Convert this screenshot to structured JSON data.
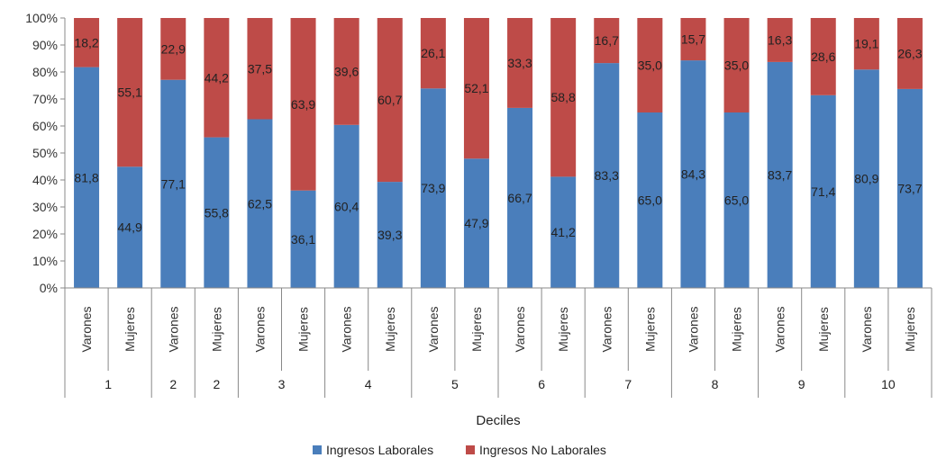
{
  "chart_data": {
    "type": "bar",
    "stacked": true,
    "title": "",
    "xlabel": "Deciles",
    "ylabel": "",
    "ylim": [
      0,
      100
    ],
    "yticks": [
      "0%",
      "10%",
      "20%",
      "30%",
      "40%",
      "50%",
      "60%",
      "70%",
      "80%",
      "90%",
      "100%"
    ],
    "categories": [
      "Varones",
      "Mujeres",
      "Varones",
      "Mujeres",
      "Varones",
      "Mujeres",
      "Varones",
      "Mujeres",
      "Varones",
      "Mujeres",
      "Varones",
      "Mujeres",
      "Varones",
      "Mujeres",
      "Varones",
      "Mujeres",
      "Varones",
      "Mujeres",
      "Varones",
      "Mujeres"
    ],
    "groups": [
      {
        "label": "1",
        "span": 2
      },
      {
        "label": "2",
        "span": 1
      },
      {
        "label": "2",
        "span": 1
      },
      {
        "label": "3",
        "span": 2
      },
      {
        "label": "4",
        "span": 2
      },
      {
        "label": "5",
        "span": 2
      },
      {
        "label": "6",
        "span": 2
      },
      {
        "label": "7",
        "span": 2
      },
      {
        "label": "8",
        "span": 2
      },
      {
        "label": "9",
        "span": 2
      },
      {
        "label": "10",
        "span": 2
      }
    ],
    "series": [
      {
        "name": "Ingresos Laborales",
        "color": "#4a7ebb",
        "values": [
          81.8,
          44.9,
          77.1,
          55.8,
          62.5,
          36.1,
          60.4,
          39.3,
          73.9,
          47.9,
          66.7,
          41.2,
          83.3,
          65.0,
          84.3,
          65.0,
          83.7,
          71.4,
          80.9,
          73.7
        ],
        "labels": [
          "81,8",
          "44,9",
          "77,1",
          "55,8",
          "62,5",
          "36,1",
          "60,4",
          "39,3",
          "73,9",
          "47,9",
          "66,7",
          "41,2",
          "83,3",
          "65,0",
          "84,3",
          "65,0",
          "83,7",
          "71,4",
          "80,9",
          "73,7"
        ]
      },
      {
        "name": "Ingresos No Laborales",
        "color": "#be4b48",
        "values": [
          18.2,
          55.1,
          22.9,
          44.2,
          37.5,
          63.9,
          39.6,
          60.7,
          26.1,
          52.1,
          33.3,
          58.8,
          16.7,
          35.0,
          15.7,
          35.0,
          16.3,
          28.6,
          19.1,
          26.3
        ],
        "labels": [
          "18,2",
          "55,1",
          "22,9",
          "44,2",
          "37,5",
          "63,9",
          "39,6",
          "60,7",
          "26,1",
          "52,1",
          "33,3",
          "58,8",
          "16,7",
          "35,0",
          "15,7",
          "35,0",
          "16,3",
          "28,6",
          "19,1",
          "26,3"
        ]
      }
    ],
    "legend": "bottom",
    "grid": false
  }
}
